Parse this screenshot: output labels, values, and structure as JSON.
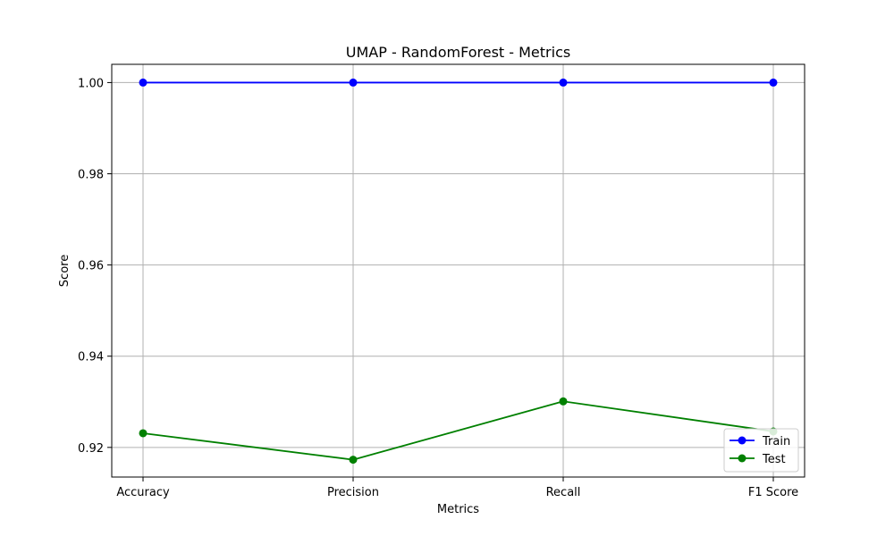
{
  "chart_data": {
    "type": "line",
    "title": "UMAP - RandomForest - Metrics",
    "xlabel": "Metrics",
    "ylabel": "Score",
    "categories": [
      "Accuracy",
      "Precision",
      "Recall",
      "F1 Score"
    ],
    "ylim": [
      0.9135,
      1.004
    ],
    "yticks": [
      0.92,
      0.94,
      0.96,
      0.98,
      1.0
    ],
    "ytick_labels": [
      "0.92",
      "0.94",
      "0.96",
      "0.98",
      "1.00"
    ],
    "grid": true,
    "legend_position": "lower-right",
    "series": [
      {
        "name": "Train",
        "color": "#0000ff",
        "marker": "circle",
        "values": [
          1.0,
          1.0,
          1.0,
          1.0
        ]
      },
      {
        "name": "Test",
        "color": "#008000",
        "marker": "circle",
        "values": [
          0.9231,
          0.9173,
          0.9301,
          0.9235
        ]
      }
    ]
  }
}
